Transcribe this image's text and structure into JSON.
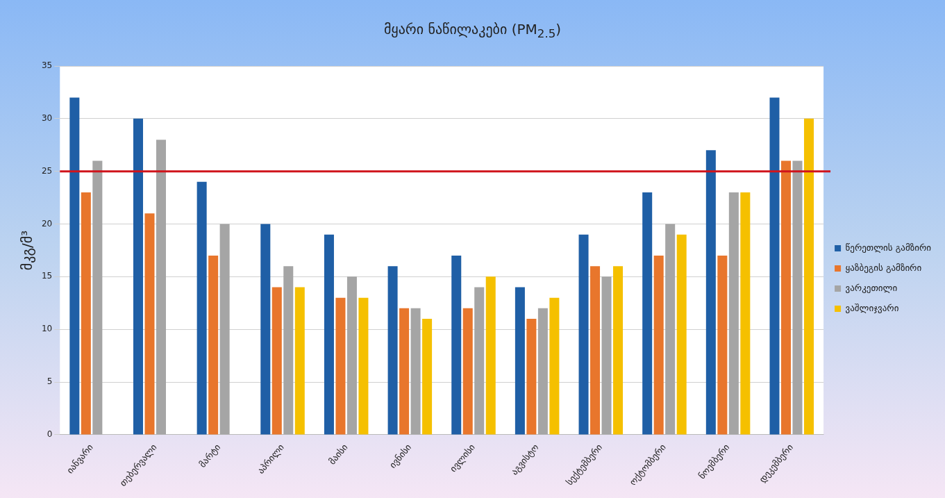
{
  "chart_data": {
    "type": "bar",
    "title": "მყარი ნაწილაკები (PM$_{2.5}$)",
    "ylabel": "მკგ/მ³",
    "categories": [
      "იანვარი",
      "თებერვალი",
      "მარტი",
      "აპრილი",
      "მაისი",
      "ივნისი",
      "ივლისი",
      "აგვისტო",
      "სექტემბერი",
      "ოქტომბერი",
      "ნოემბერი",
      "დეკემბერი"
    ],
    "series": [
      {
        "name": "წერეთლის გამზირი",
        "color": "#1f5fa6",
        "values": [
          32,
          30,
          24,
          20,
          19,
          16,
          17,
          14,
          19,
          23,
          27,
          32
        ]
      },
      {
        "name": "ყაზბეგის გამზირი",
        "color": "#e8762c",
        "values": [
          23,
          21,
          17,
          14,
          13,
          12,
          12,
          11,
          16,
          17,
          17,
          26
        ]
      },
      {
        "name": "ვარკეთილი",
        "color": "#a5a5a5",
        "values": [
          26,
          28,
          20,
          16,
          15,
          12,
          14,
          12,
          15,
          20,
          23,
          26
        ]
      },
      {
        "name": "ვაშლიჯვარი",
        "color": "#f5c000",
        "values": [
          null,
          null,
          null,
          14,
          13,
          11,
          15,
          13,
          16,
          19,
          23,
          30
        ]
      }
    ],
    "ylim": [
      0,
      35
    ],
    "yticks": [
      0,
      5,
      10,
      15,
      20,
      25,
      30,
      35
    ],
    "grid": "y",
    "legend": "right",
    "ref_lines": [
      {
        "axis": "y",
        "value": 25,
        "color": "#d0141c"
      }
    ]
  }
}
